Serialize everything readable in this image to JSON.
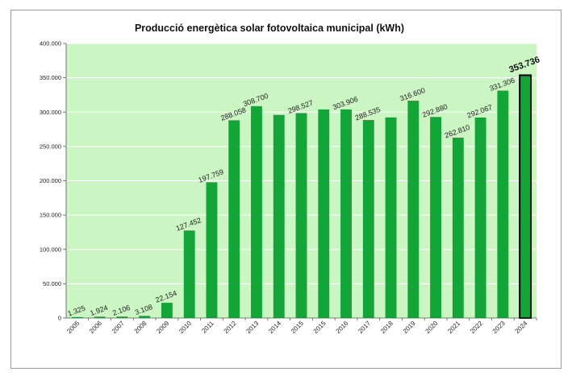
{
  "chart_data": {
    "type": "bar",
    "title": "Producció energètica solar fotovoltaica municipal (kWh)",
    "xlabel": "",
    "ylabel": "",
    "ylim": [
      0,
      400000
    ],
    "yticks": [
      "0",
      "50.000",
      "100.000",
      "150.000",
      "200.000",
      "250.000",
      "300.000",
      "350.000",
      "400.000"
    ],
    "categories": [
      "2005",
      "2006",
      "2007",
      "2008",
      "2009",
      "2010",
      "2011",
      "2012",
      "2013",
      "2014",
      "2015",
      "2015",
      "2016",
      "2017",
      "2018",
      "2019",
      "2020",
      "2021",
      "2022",
      "2023",
      "2024"
    ],
    "values": [
      1325,
      1924,
      2106,
      3108,
      22154,
      127452,
      197759,
      288058,
      308700,
      295900,
      298527,
      303906,
      303906,
      288535,
      292200,
      316600,
      292880,
      262810,
      292067,
      331306,
      353736
    ],
    "labels": [
      "1.325",
      "1.924",
      "2.106",
      "3.108",
      "22.154",
      "127.452",
      "197.759",
      "288.058",
      "308.700",
      "",
      "298.527",
      "",
      "303.906",
      "288.535",
      "",
      "316.600",
      "292.880",
      "262.810",
      "292.067",
      "331.306",
      "353.736"
    ],
    "highlight_index": 20,
    "grid": true,
    "colors": {
      "plot_bg": "#ccf5c4",
      "bar": "#13a538",
      "bar_highlight_border": "#000000",
      "gridline": "#ffffff"
    }
  }
}
